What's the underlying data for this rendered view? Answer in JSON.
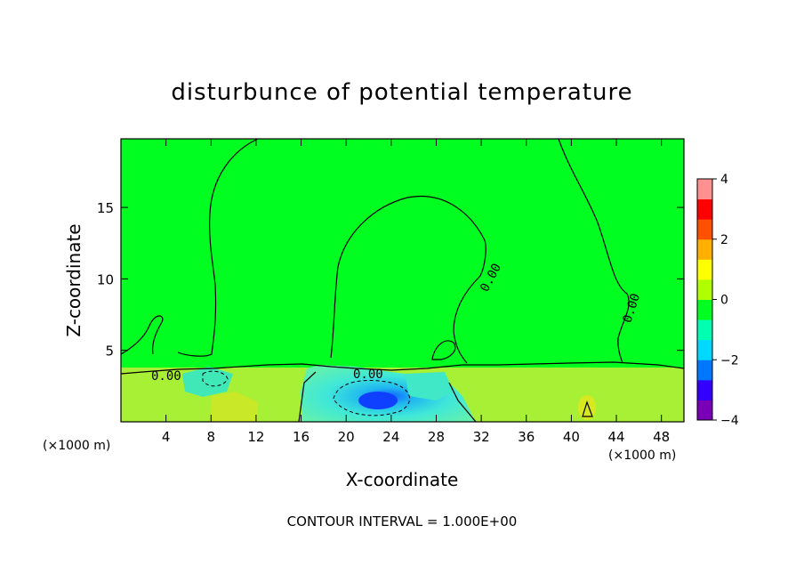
{
  "chart_data": {
    "type": "heatmap",
    "title": "disturbunce of potential temperature",
    "xlabel": "X-coordinate",
    "ylabel": "Z-coordinate",
    "x_unit": "(×1000 m)",
    "xlim": [
      0,
      50
    ],
    "ylim": [
      0,
      19.8
    ],
    "x_ticks": [
      "4",
      "8",
      "12",
      "16",
      "20",
      "24",
      "28",
      "32",
      "36",
      "40",
      "44",
      "48"
    ],
    "y_ticks": [
      "5",
      "10",
      "15"
    ],
    "colorbar": {
      "range": [
        -4,
        4
      ],
      "ticks": [
        "4",
        "2",
        "0",
        "−2",
        "−4"
      ],
      "colors": [
        "#7a00b8",
        "#3300ff",
        "#0077ff",
        "#00d8ff",
        "#00ffb0",
        "#00ff20",
        "#b0ff00",
        "#ffff00",
        "#ffb000",
        "#ff5000",
        "#ff0000",
        "#ff9090"
      ]
    },
    "contour_labels": [
      "0.00",
      "0.00",
      "0.00",
      "0.00"
    ],
    "footer": "CONTOUR INTERVAL = 1.000E+00",
    "field_features": [
      {
        "kind": "background",
        "value": 0.0,
        "color": "#00ff20"
      },
      {
        "kind": "near-surface layer",
        "x_range": [
          0,
          50
        ],
        "z_range": [
          0,
          3.8
        ],
        "value": 0.3,
        "color": "#a8f035"
      },
      {
        "kind": "cold pool",
        "x_range": [
          17.5,
          30
        ],
        "z_range": [
          0,
          3.6
        ],
        "value": -1.5,
        "color": "#30e0d8"
      },
      {
        "kind": "cold patch",
        "x_range": [
          6,
          10
        ],
        "z_range": [
          2.5,
          3.6
        ],
        "value": -0.8,
        "color": "#40e8b8"
      },
      {
        "kind": "warm spot",
        "x": 41.5,
        "z": 1.0,
        "value": 1.2,
        "color": "#d8e820"
      }
    ]
  }
}
